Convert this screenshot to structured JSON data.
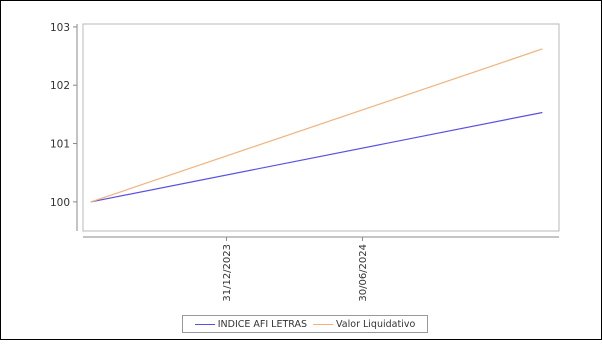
{
  "chart_data": {
    "type": "line",
    "title": "",
    "xlabel": "",
    "ylabel": "",
    "x_ticks": [
      {
        "value": "2023-12-31",
        "label": "31/12/2023"
      },
      {
        "value": "2024-06-30",
        "label": "30/06/2024"
      }
    ],
    "x": [
      "2023-07-03",
      "2025-02-25"
    ],
    "xlim": [
      "2023-06-22",
      "2025-03-20"
    ],
    "ylim": [
      99.5,
      103.05
    ],
    "y_ticks": [
      100,
      101,
      102,
      103
    ],
    "grid": false,
    "legend_position": "bottom",
    "series": [
      {
        "name": "INDICE AFI LETRAS",
        "color": "#5a50e6",
        "values": [
          100.0,
          101.53
        ]
      },
      {
        "name": "Valor Liquidativo",
        "color": "#f4b27a",
        "values": [
          100.0,
          102.62
        ]
      }
    ]
  }
}
